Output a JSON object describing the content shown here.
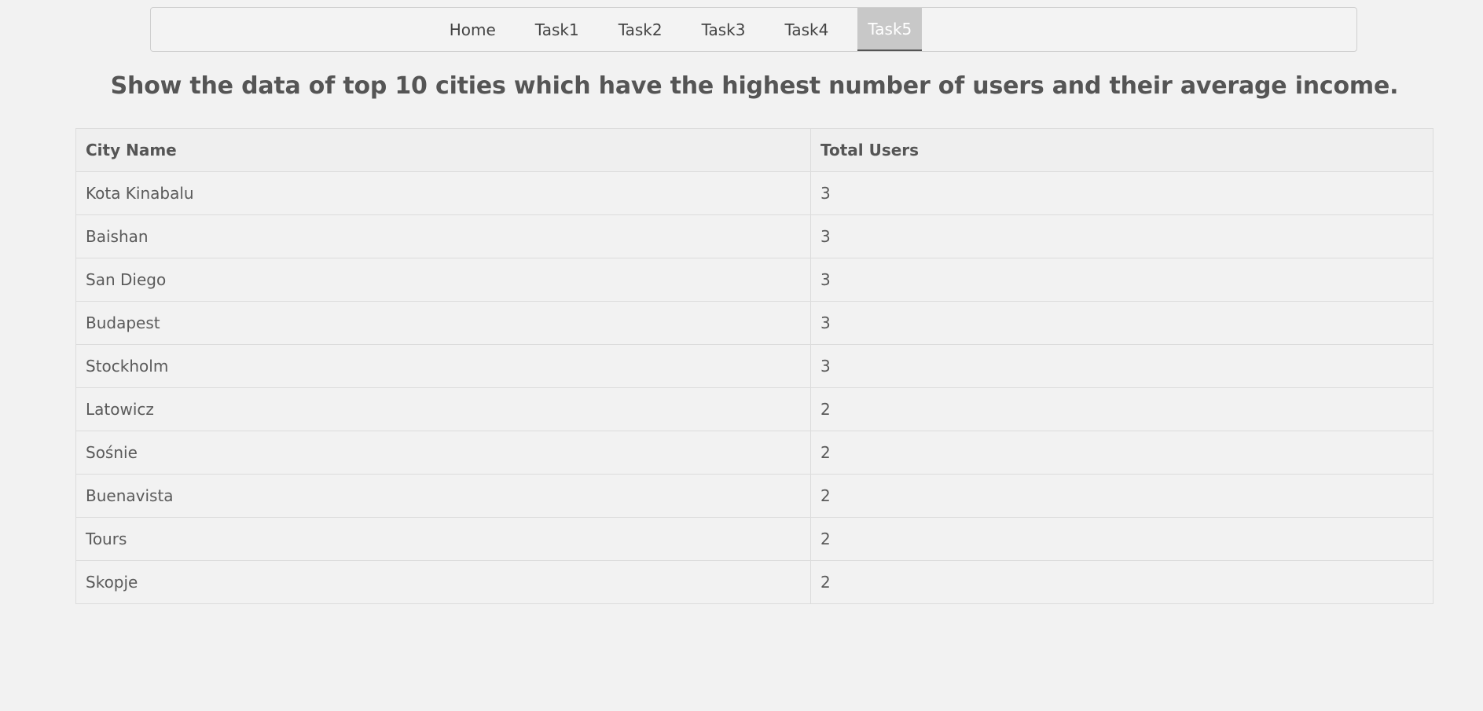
{
  "nav": {
    "items": [
      {
        "label": "Home",
        "active": false
      },
      {
        "label": "Task1",
        "active": false
      },
      {
        "label": "Task2",
        "active": false
      },
      {
        "label": "Task3",
        "active": false
      },
      {
        "label": "Task4",
        "active": false
      },
      {
        "label": "Task5",
        "active": true
      }
    ]
  },
  "page": {
    "title": "Show the data of top 10 cities which have the highest number of users and their average income."
  },
  "table": {
    "headers": [
      "City Name",
      "Total Users"
    ],
    "rows": [
      [
        "Kota Kinabalu",
        "3"
      ],
      [
        "Baishan",
        "3"
      ],
      [
        "San Diego",
        "3"
      ],
      [
        "Budapest",
        "3"
      ],
      [
        "Stockholm",
        "3"
      ],
      [
        "Latowicz",
        "2"
      ],
      [
        "Sośnie",
        "2"
      ],
      [
        "Buenavista",
        "2"
      ],
      [
        "Tours",
        "2"
      ],
      [
        "Skopje",
        "2"
      ]
    ]
  }
}
